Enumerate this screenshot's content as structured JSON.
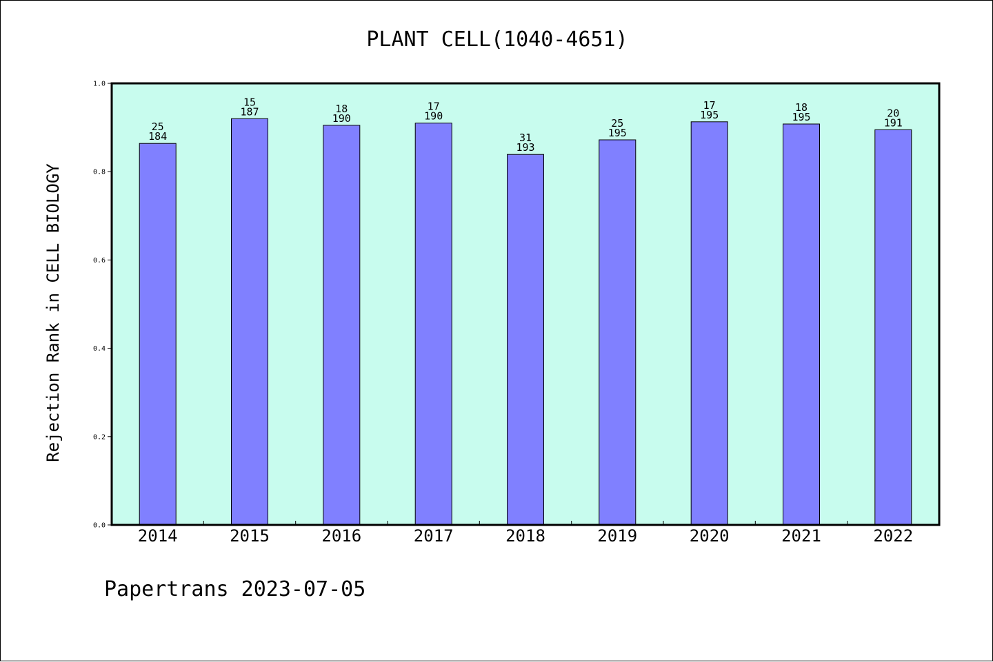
{
  "chart_data": {
    "type": "bar",
    "title": "PLANT CELL(1040-4651)",
    "ylabel": "Rejection Rank in CELL BIOLOGY",
    "xlabel": "",
    "ylim": [
      0,
      1.0
    ],
    "y_ticks": [
      "0.0",
      "0.2",
      "0.4",
      "0.6",
      "0.8",
      "1.0"
    ],
    "categories": [
      "2014",
      "2015",
      "2016",
      "2017",
      "2018",
      "2019",
      "2020",
      "2021",
      "2022"
    ],
    "values": [
      0.864,
      0.92,
      0.905,
      0.91,
      0.839,
      0.872,
      0.913,
      0.908,
      0.895
    ],
    "bar_labels": [
      {
        "rank": "25",
        "total": "184"
      },
      {
        "rank": "15",
        "total": "187"
      },
      {
        "rank": "18",
        "total": "190"
      },
      {
        "rank": "17",
        "total": "190"
      },
      {
        "rank": "31",
        "total": "193"
      },
      {
        "rank": "25",
        "total": "195"
      },
      {
        "rank": "17",
        "total": "195"
      },
      {
        "rank": "18",
        "total": "195"
      },
      {
        "rank": "20",
        "total": "191"
      }
    ],
    "grid": false,
    "colors": {
      "plot_background": "#c8fcee",
      "bar_fill": "#8080ff",
      "bar_stroke": "#000000"
    }
  },
  "footer": "Papertrans 2023-07-05"
}
